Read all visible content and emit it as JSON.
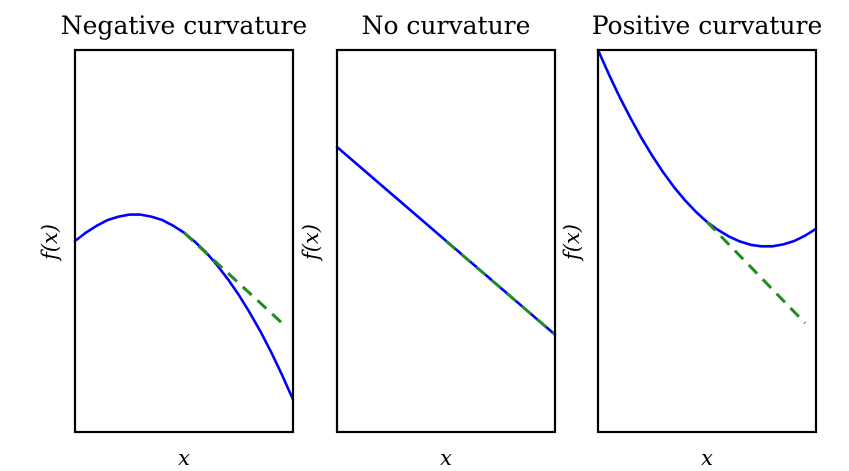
{
  "chart_data": [
    {
      "type": "line",
      "title": "Negative curvature",
      "xlabel": "x",
      "ylabel": "f(x)",
      "xlim": [
        0,
        1
      ],
      "ylim": [
        0,
        1
      ],
      "grid": false,
      "series": [
        {
          "values": [
            [
              0,
              0.5
            ],
            [
              0.05,
              0.522
            ],
            [
              0.1,
              0.54
            ],
            [
              0.15,
              0.555
            ],
            [
              0.2,
              0.564
            ],
            [
              0.25,
              0.569
            ],
            [
              0.3,
              0.569
            ],
            [
              0.35,
              0.564
            ],
            [
              0.4,
              0.555
            ],
            [
              0.45,
              0.54
            ],
            [
              0.5,
              0.522
            ],
            [
              0.55,
              0.498
            ],
            [
              0.6,
              0.471
            ],
            [
              0.65,
              0.438
            ],
            [
              0.7,
              0.401
            ],
            [
              0.75,
              0.36
            ],
            [
              0.8,
              0.314
            ],
            [
              0.85,
              0.264
            ],
            [
              0.9,
              0.209
            ],
            [
              0.95,
              0.149
            ],
            [
              1,
              0.085
            ]
          ],
          "color": "#0000ff"
        },
        {
          "values": [
            [
              0.5,
              0.522
            ],
            [
              0.95,
              0.285
            ]
          ],
          "color": "#228b22",
          "style": "dashed"
        }
      ]
    },
    {
      "type": "line",
      "title": "No curvature",
      "xlabel": "x",
      "ylabel": "f(x)",
      "xlim": [
        0,
        1
      ],
      "ylim": [
        0,
        1
      ],
      "grid": false,
      "series": [
        {
          "values": [
            [
              0,
              0.746
            ],
            [
              1,
              0.255
            ]
          ],
          "color": "#0000ff"
        },
        {
          "values": [
            [
              0.5,
              0.5
            ],
            [
              1,
              0.255
            ]
          ],
          "color": "#228b22",
          "style": "dashed"
        }
      ]
    },
    {
      "type": "line",
      "title": "Positive curvature",
      "xlabel": "x",
      "ylabel": "f(x)",
      "xlim": [
        0,
        1
      ],
      "ylim": [
        0,
        1
      ],
      "grid": false,
      "series": [
        {
          "values": [
            [
              0,
              1.0
            ],
            [
              0.05,
              0.936
            ],
            [
              0.1,
              0.876
            ],
            [
              0.15,
              0.821
            ],
            [
              0.2,
              0.769
            ],
            [
              0.25,
              0.722
            ],
            [
              0.3,
              0.679
            ],
            [
              0.35,
              0.64
            ],
            [
              0.4,
              0.606
            ],
            [
              0.45,
              0.576
            ],
            [
              0.5,
              0.55
            ],
            [
              0.55,
              0.529
            ],
            [
              0.6,
              0.512
            ],
            [
              0.65,
              0.499
            ],
            [
              0.7,
              0.49
            ],
            [
              0.75,
              0.486
            ],
            [
              0.8,
              0.486
            ],
            [
              0.85,
              0.491
            ],
            [
              0.9,
              0.5
            ],
            [
              0.95,
              0.514
            ],
            [
              1,
              0.532
            ]
          ],
          "color": "#0000ff"
        },
        {
          "values": [
            [
              0.5,
              0.55
            ],
            [
              0.95,
              0.285
            ]
          ],
          "color": "#228b22",
          "style": "dashed"
        }
      ]
    }
  ]
}
